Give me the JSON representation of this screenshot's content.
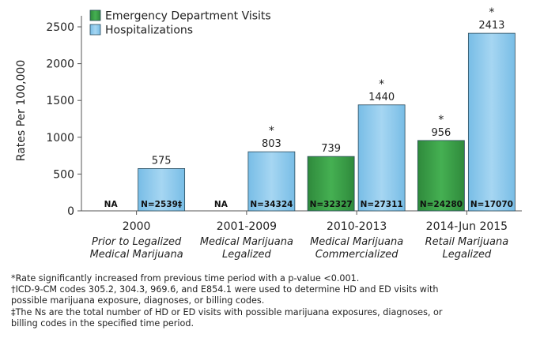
{
  "chart_data": {
    "type": "bar",
    "ylabel": "Rates Per 100,000",
    "ylim": [
      0,
      2600
    ],
    "yticks": [
      0,
      500,
      1000,
      1500,
      2000,
      2500
    ],
    "grid": false,
    "legend_position": "top-left",
    "categories": [
      {
        "period": "2000",
        "desc1": "Prior to Legalized",
        "desc2": "Medical Marijuana"
      },
      {
        "period": "2001-2009",
        "desc1": "Medical Marijuana",
        "desc2": "Legalized"
      },
      {
        "period": "2010-2013",
        "desc1": "Medical Marijuana",
        "desc2": "Commercialized"
      },
      {
        "period": "2014-Jun 2015",
        "desc1": "Retail Marijuana",
        "desc2": "Legalized"
      }
    ],
    "series": [
      {
        "name": "Emergency Department Visits",
        "color": "#3aa047",
        "values": [
          null,
          null,
          739,
          956
        ],
        "labels": [
          "",
          "",
          "739",
          "956"
        ],
        "n_labels": [
          "NA",
          "NA",
          "N=32327",
          "N=24280"
        ],
        "significant": [
          false,
          false,
          false,
          true
        ]
      },
      {
        "name": "Hospitalizations",
        "color": "#8cc9eb",
        "values": [
          575,
          803,
          1440,
          2413
        ],
        "labels": [
          "575",
          "803",
          "1440",
          "2413"
        ],
        "n_labels": [
          "N=2539‡",
          "N=34324",
          "N=27311",
          "N=17070"
        ],
        "significant": [
          false,
          true,
          true,
          true
        ]
      }
    ],
    "significance_marker": "*"
  },
  "footnotes": [
    "*Rate significantly increased from previous time period with a p-value <0.001.",
    "†ICD-9-CM codes 305.2, 304.3, 969.6, and E854.1 were used to determine HD and ED visits with",
    "possible marijuana exposure, diagnoses, or billing codes.",
    "‡The Ns are the total number of HD or ED visits with possible marijuana exposures, diagnoses, or",
    "billing codes in the specified time period."
  ]
}
